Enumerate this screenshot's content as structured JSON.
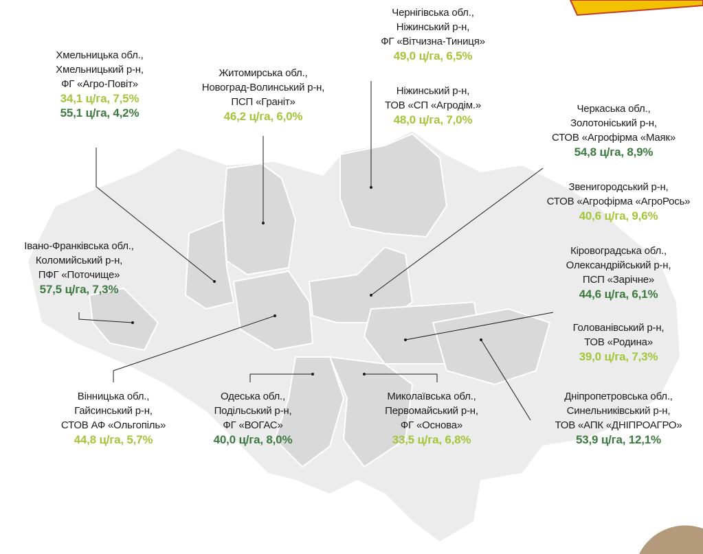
{
  "callouts": [
    {
      "lines": [
        "Чернігівська обл.,",
        "Ніжинський р-н,",
        "ФГ «Вітчизна-Тиниця»"
      ],
      "results": [
        {
          "text": "49,0 ц/га, 6,5%",
          "color": "#a3c639"
        }
      ]
    },
    {
      "lines": [
        "Ніжинський р-н,",
        "ТОВ «СП «Агродім.»"
      ],
      "results": [
        {
          "text": "48,0 ц/га, 7,0%",
          "color": "#a3c639"
        }
      ]
    },
    {
      "lines": [
        "Хмельницька обл.,",
        "Хмельницький р-н,",
        "ФГ «Агро-Повіт»"
      ],
      "results": [
        {
          "text": "34,1 ц/га, 7,5%",
          "color": "#a3c639"
        },
        {
          "text": "55,1 ц/га, 4,2%",
          "color": "#3b7a3e"
        }
      ]
    },
    {
      "lines": [
        "Житомирська обл.,",
        "Новоград-Волинський р-н,",
        "ПСП «Граніт»"
      ],
      "results": [
        {
          "text": "46,2 ц/га, 6,0%",
          "color": "#a3c639"
        }
      ]
    },
    {
      "lines": [
        "Черкаська обл.,",
        "Золотоніський р-н,",
        "СТОВ «Агрофірма «Маяк»"
      ],
      "results": [
        {
          "text": "54,8 ц/га, 8,9%",
          "color": "#3b7a3e"
        }
      ]
    },
    {
      "lines": [
        "Звенигородський р-н,",
        "СТОВ «Агрофірма «АгроРось»"
      ],
      "results": [
        {
          "text": "40,6 ц/га, 9,6%",
          "color": "#a3c639"
        }
      ]
    },
    {
      "lines": [
        "Івано-Франківська обл.,",
        "Коломийський р-н,",
        "ПФГ «Поточище»"
      ],
      "results": [
        {
          "text": "57,5 ц/га, 7,3%",
          "color": "#3b7a3e"
        }
      ]
    },
    {
      "lines": [
        "Кіровоградська обл.,",
        "Олександрійський р-н,",
        "ПСП «Зарічне»"
      ],
      "results": [
        {
          "text": "44,6 ц/га, 6,1%",
          "color": "#3b7a3e"
        }
      ]
    },
    {
      "lines": [
        "Голованівський р-н,",
        "ТОВ «Родина»"
      ],
      "results": [
        {
          "text": "39,0 ц/га, 7,3%",
          "color": "#a3c639"
        }
      ]
    },
    {
      "lines": [
        "Вінницька обл.,",
        "Гайсинський р-н,",
        "СТОВ АФ «Ольгопіль»"
      ],
      "results": [
        {
          "text": "44,8 ц/га, 5,7%",
          "color": "#a3c639"
        }
      ]
    },
    {
      "lines": [
        "Одеська обл.,",
        "Подільський р-н,",
        "ФГ «ВОГАС»"
      ],
      "results": [
        {
          "text": "40,0 ц/га, 8,0%",
          "color": "#3b7a3e"
        }
      ]
    },
    {
      "lines": [
        "Миколаївська обл.,",
        "Первомайський р-н,",
        "ФГ «Основа»"
      ],
      "results": [
        {
          "text": "33,5 ц/га, 6,8%",
          "color": "#a3c639"
        }
      ]
    },
    {
      "lines": [
        "Дніпропетровська обл.,",
        "Синельниківський р-н,",
        "ТОВ «АПК «ДНІПРОАГРО»"
      ],
      "results": [
        {
          "text": "53,9 ц/га, 12,1%",
          "color": "#3b7a3e"
        }
      ]
    }
  ]
}
